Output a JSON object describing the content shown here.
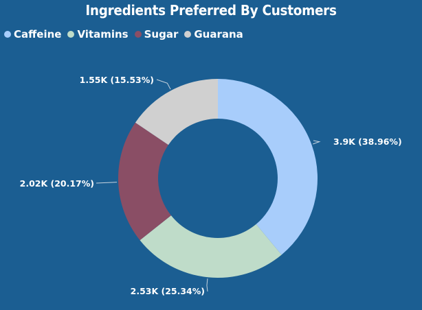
{
  "chart_data": {
    "type": "pie",
    "donut": true,
    "title": "Ingredients Preferred By Customers",
    "legend_position": "top-left",
    "slices": [
      {
        "name": "Caffeine",
        "value": 3900,
        "percent": 38.96,
        "label": "3.9K (38.96%)",
        "color": "#a8cdfb"
      },
      {
        "name": "Vitamins",
        "value": 2530,
        "percent": 25.34,
        "label": "2.53K (25.34%)",
        "color": "#bfdcc9"
      },
      {
        "name": "Sugar",
        "value": 2020,
        "percent": 20.17,
        "label": "2.02K (20.17%)",
        "color": "#8a4e65"
      },
      {
        "name": "Guarana",
        "value": 1550,
        "percent": 15.53,
        "label": "1.55K (15.53%)",
        "color": "#d0d0d0"
      }
    ]
  },
  "colors": {
    "background": "#1b5e92",
    "text": "#ffffff"
  }
}
